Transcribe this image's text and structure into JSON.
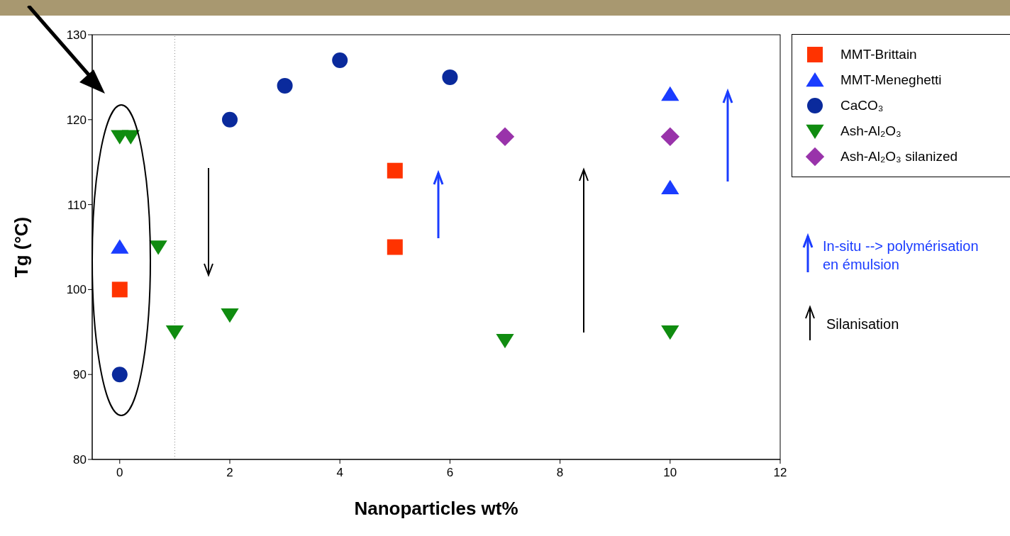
{
  "chart_data": {
    "type": "scatter",
    "xlabel": "Nanoparticles wt%",
    "ylabel": "Tg (°C)",
    "xlim": [
      -0.5,
      12
    ],
    "ylim": [
      80,
      130
    ],
    "xticks": [
      0,
      2,
      4,
      6,
      8,
      10,
      12
    ],
    "yticks": [
      80,
      90,
      100,
      110,
      120,
      130
    ],
    "grid": false,
    "legend": "top right",
    "ref_lines": [
      {
        "axis": "x",
        "value": 1,
        "color": "#888888",
        "line_style": "dotted"
      }
    ],
    "annotations": [
      "In-situ --> polymérisation en émulsion",
      "Silanisation"
    ],
    "series": [
      {
        "name": "MMT-Brittain",
        "color": "#ff3300",
        "marker": "square",
        "x": [
          0,
          5,
          5
        ],
        "values": [
          100,
          114,
          105
        ]
      },
      {
        "name": "MMT-Meneghetti",
        "color": "#1a3cff",
        "marker": "triangle",
        "x": [
          0,
          10,
          10
        ],
        "values": [
          105,
          123,
          112
        ]
      },
      {
        "name": "CaCO₃",
        "color": "#0a2a9c",
        "marker": "circle",
        "x": [
          0,
          2,
          3,
          4,
          6
        ],
        "values": [
          90,
          120,
          124,
          127,
          125
        ]
      },
      {
        "name": "Ash-Al₂O₃",
        "color": "#108c10",
        "marker": "triangle-down",
        "x": [
          0,
          0.2,
          0.7,
          1,
          2,
          7,
          10
        ],
        "values": [
          118,
          118,
          105,
          95,
          97,
          94,
          95
        ]
      },
      {
        "name": "Ash-Al₂O₃ silanized",
        "color": "#9933aa",
        "marker": "diamond",
        "x": [
          7,
          10
        ],
        "values": [
          118,
          118
        ]
      }
    ]
  }
}
